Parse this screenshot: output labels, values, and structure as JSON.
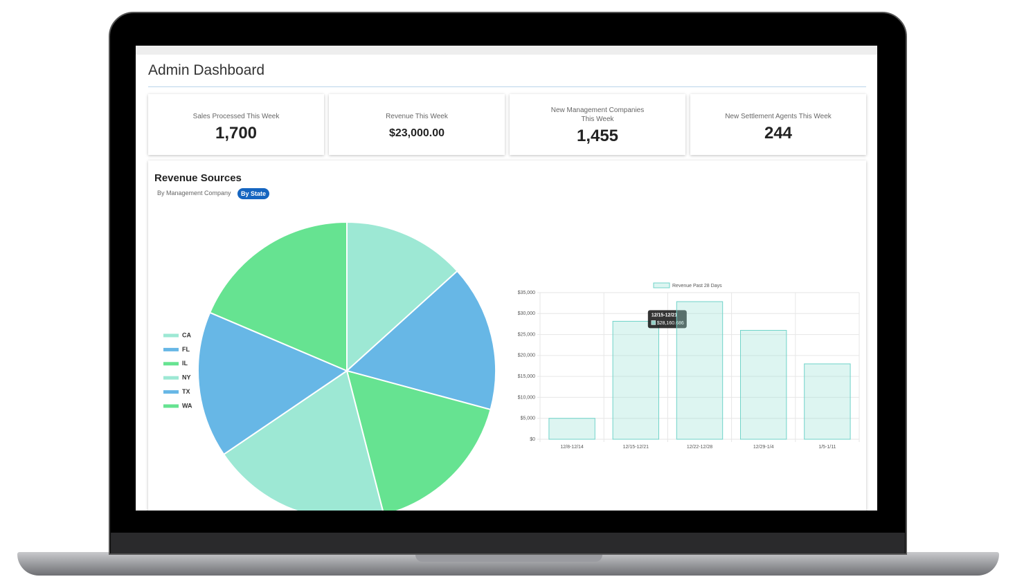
{
  "dashboard": {
    "title": "Admin Dashboard",
    "cards": [
      {
        "label": "Sales Processed This Week",
        "value": "1,700"
      },
      {
        "label": "Revenue This Week",
        "value": "$23,000.00"
      },
      {
        "label": "New Management Companies This Week",
        "value": "1,455"
      },
      {
        "label": "New Settlement Agents This Week",
        "value": "244"
      }
    ],
    "section_title": "Revenue Sources",
    "tabs": [
      "By Management Company",
      "By State"
    ]
  },
  "chart_data": [
    {
      "type": "pie",
      "categories": [
        "CA",
        "FL",
        "IL",
        "NY",
        "TX",
        "WA"
      ],
      "values": [
        13.3,
        15.9,
        16.8,
        19.5,
        15.9,
        18.6
      ],
      "colors": [
        "#9de8d4",
        "#67b7e6",
        "#66e391",
        "#9de8d4",
        "#67b7e6",
        "#66e391"
      ],
      "legend": "left"
    },
    {
      "type": "bar",
      "series": [
        {
          "name": "Revenue Past 28 Days",
          "color": "#6fd3c9",
          "values": [
            5000,
            28160.686,
            32850,
            26000,
            18000
          ],
          "value_labels": [
            null,
            "$28,160.686",
            null,
            null,
            null
          ]
        }
      ],
      "categories": [
        "12/8-12/14",
        "12/15-12/21",
        "12/22-12/28",
        "12/29-1/4",
        "1/5-1/11"
      ],
      "ylim": [
        0,
        35000
      ],
      "yticks": [
        {
          "value": 0,
          "label": "$0"
        },
        {
          "value": 5000,
          "label": "$5,000"
        },
        {
          "value": 10000,
          "label": "$10,000"
        },
        {
          "value": 15000,
          "label": "$15,000"
        },
        {
          "value": 20000,
          "label": "$20,000"
        },
        {
          "value": 25000,
          "label": "$25,000"
        },
        {
          "value": 30000,
          "label": "$30,000"
        },
        {
          "value": 35000,
          "label": "$35,000"
        }
      ],
      "grid": true,
      "legend": "top"
    }
  ]
}
